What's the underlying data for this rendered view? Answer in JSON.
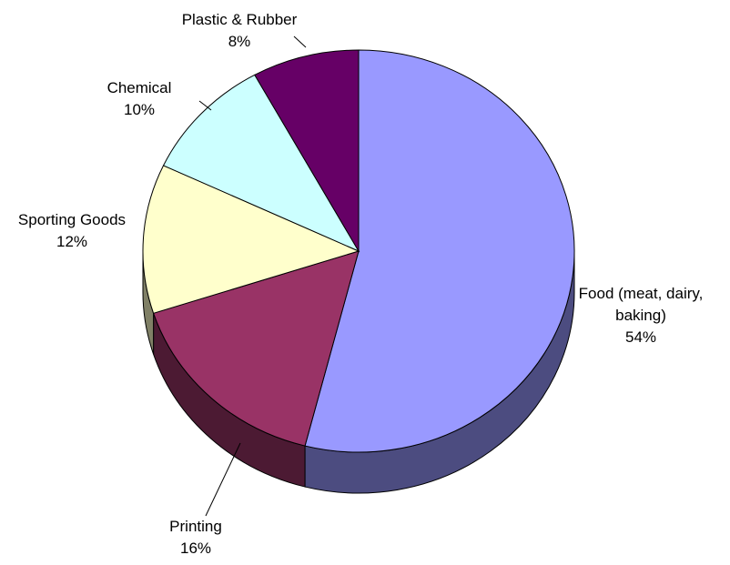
{
  "chart_data": {
    "type": "pie",
    "style": "3d-exploded-none",
    "title": "",
    "slices": [
      {
        "label_lines": [
          "Food (meat, dairy,",
          "baking)"
        ],
        "percent_text": "54%",
        "value": 54,
        "color": "#9999FF",
        "side_color": "#4C4C80"
      },
      {
        "label_lines": [
          "Printing"
        ],
        "percent_text": "16%",
        "value": 16,
        "color": "#993366",
        "side_color": "#4C1A33"
      },
      {
        "label_lines": [
          "Sporting Goods"
        ],
        "percent_text": "12%",
        "value": 12,
        "color": "#FFFFCC",
        "side_color": "#808066"
      },
      {
        "label_lines": [
          "Chemical"
        ],
        "percent_text": "10%",
        "value": 10,
        "color": "#CCFFFF",
        "side_color": "#668080"
      },
      {
        "label_lines": [
          "Plastic & Rubber"
        ],
        "percent_text": "8%",
        "value": 8,
        "color": "#660066",
        "side_color": "#330033"
      }
    ]
  }
}
